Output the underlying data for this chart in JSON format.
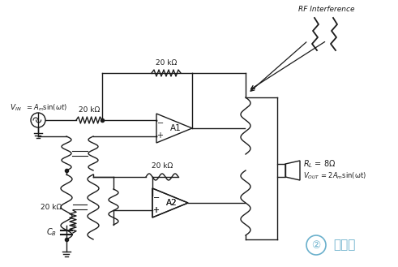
{
  "bg_color": "#ffffff",
  "line_color": "#1a1a1a",
  "r1_label": "20 kΩ",
  "r2_label": "20 kΩ",
  "r3_label": "20 kΩ",
  "r4_label": "20 kΩ",
  "rf1_label": "RF Interference",
  "rl_label": "R_L = 8Ω",
  "vout_label": "V_OUT = 2A_msin(ωt)",
  "a1_label": "A1",
  "a2_label": "A2",
  "cb_label": "C_B",
  "watermark_text": "日月辰",
  "watermark_color": "#6ab0cc"
}
